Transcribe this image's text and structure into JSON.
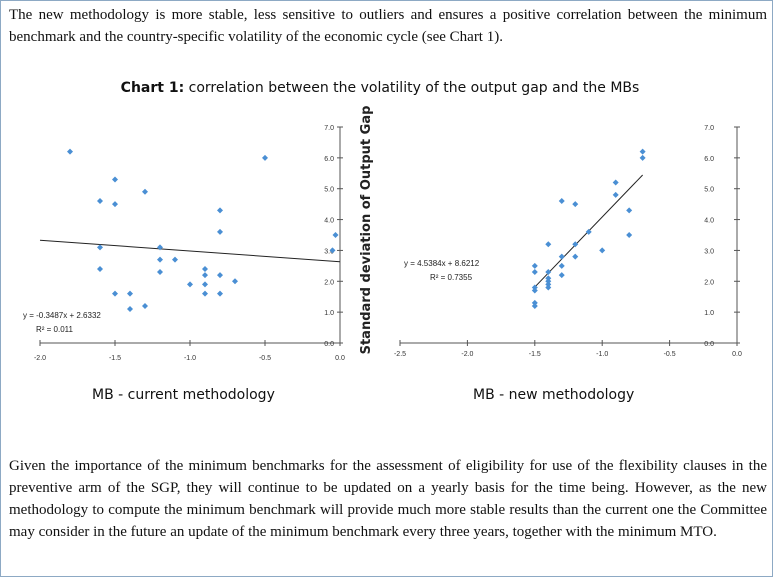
{
  "document": {
    "intro_paragraph": "The new methodology is more stable, less sensitive to outliers and ensures a positive correlation between the minimum benchmark and the country-specific volatility of the economic cycle (see Chart 1).",
    "chart_title_bold": "Chart 1:",
    "chart_title_rest": " correlation between the volatility of the output gap and the MBs",
    "closing_paragraph": "Given the importance of the minimum benchmarks for the assessment of eligibility for use of the flexibility clauses in the preventive arm of the SGP, they will continue to be updated on a yearly basis for the time being. However, as the new methodology to compute the minimum benchmark will provide much more stable results than the current one the Committee may consider in the future an update of the minimum benchmark every three years, together with the minimum MTO."
  },
  "chart_data": [
    {
      "type": "scatter",
      "title": "MB - current methodology",
      "xlabel": "",
      "ylabel": "Standard deviation of Output Gap",
      "xlim": [
        -2.0,
        0.0
      ],
      "ylim": [
        0.0,
        7.0
      ],
      "x_ticks": [
        "-2.0",
        "-1.5",
        "-1.0",
        "-0.5",
        "0.0"
      ],
      "y_ticks": [
        "0.0",
        "1.0",
        "2.0",
        "3.0",
        "4.0",
        "5.0",
        "6.0",
        "7.0"
      ],
      "color": "#4a8fd4",
      "trendline": {
        "slope": -0.3487,
        "intercept": 2.6332
      },
      "equation": "y = -0.3487x + 2.6332",
      "r_squared": "R² = 0.011",
      "points": [
        [
          -1.8,
          6.2
        ],
        [
          -0.5,
          6.0
        ],
        [
          -1.5,
          5.3
        ],
        [
          -1.3,
          4.9
        ],
        [
          -1.6,
          4.6
        ],
        [
          -1.5,
          4.5
        ],
        [
          -0.8,
          4.3
        ],
        [
          -0.8,
          3.6
        ],
        [
          -0.03,
          3.5
        ],
        [
          -1.6,
          3.1
        ],
        [
          -1.2,
          3.1
        ],
        [
          -0.05,
          3.0
        ],
        [
          -1.2,
          2.7
        ],
        [
          -1.1,
          2.7
        ],
        [
          -1.6,
          2.4
        ],
        [
          -1.2,
          2.3
        ],
        [
          -0.9,
          2.4
        ],
        [
          -0.9,
          2.2
        ],
        [
          -0.8,
          2.2
        ],
        [
          -0.7,
          2.0
        ],
        [
          -0.9,
          1.9
        ],
        [
          -1.0,
          1.9
        ],
        [
          -0.9,
          1.6
        ],
        [
          -0.8,
          1.6
        ],
        [
          -1.5,
          1.6
        ],
        [
          -1.4,
          1.6
        ],
        [
          -1.3,
          1.2
        ],
        [
          -1.4,
          1.1
        ]
      ]
    },
    {
      "type": "scatter",
      "title": "MB - new methodology",
      "xlabel": "",
      "ylabel": "",
      "xlim": [
        -2.5,
        0.0
      ],
      "ylim": [
        0.0,
        7.0
      ],
      "x_ticks": [
        "-2.5",
        "-2.0",
        "-1.5",
        "-1.0",
        "-0.5",
        "0.0"
      ],
      "y_ticks": [
        "0.0",
        "1.0",
        "2.0",
        "3.0",
        "4.0",
        "5.0",
        "6.0",
        "7.0"
      ],
      "color": "#4a8fd4",
      "trendline": {
        "slope": 4.5384,
        "intercept": 8.6212
      },
      "equation": "y = 4.5384x + 8.6212",
      "r_squared": "R² = 0.7355",
      "points": [
        [
          -0.7,
          6.2
        ],
        [
          -0.7,
          6.0
        ],
        [
          -0.9,
          5.2
        ],
        [
          -0.9,
          4.8
        ],
        [
          -1.3,
          4.6
        ],
        [
          -1.2,
          4.5
        ],
        [
          -0.8,
          4.3
        ],
        [
          -1.1,
          3.6
        ],
        [
          -0.8,
          3.5
        ],
        [
          -1.4,
          3.2
        ],
        [
          -1.2,
          3.2
        ],
        [
          -1.0,
          3.0
        ],
        [
          -1.3,
          2.8
        ],
        [
          -1.2,
          2.8
        ],
        [
          -1.5,
          2.5
        ],
        [
          -1.3,
          2.5
        ],
        [
          -1.5,
          2.3
        ],
        [
          -1.4,
          2.3
        ],
        [
          -1.3,
          2.2
        ],
        [
          -1.4,
          2.1
        ],
        [
          -1.4,
          2.0
        ],
        [
          -1.4,
          1.9
        ],
        [
          -1.5,
          1.8
        ],
        [
          -1.5,
          1.7
        ],
        [
          -1.4,
          1.8
        ],
        [
          -1.5,
          1.3
        ],
        [
          -1.5,
          1.2
        ]
      ]
    }
  ]
}
